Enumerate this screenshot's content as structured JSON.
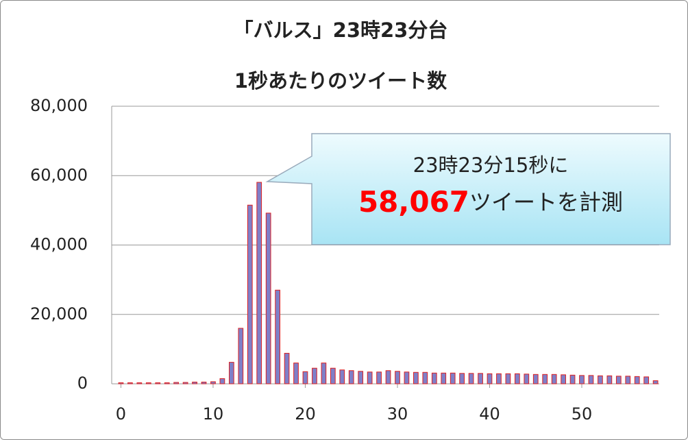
{
  "chart_data": {
    "type": "bar",
    "title": "「バルス」23時23分台",
    "subtitle": "1秒あたりのツイート数",
    "annotation": [
      "23時23分15秒に",
      "58,067",
      "ツイートを計測"
    ],
    "x": [
      0,
      1,
      2,
      3,
      4,
      5,
      6,
      7,
      8,
      9,
      10,
      11,
      12,
      13,
      14,
      15,
      16,
      17,
      18,
      19,
      20,
      21,
      22,
      23,
      24,
      25,
      26,
      27,
      28,
      29,
      30,
      31,
      32,
      33,
      34,
      35,
      36,
      37,
      38,
      39,
      40,
      41,
      42,
      43,
      44,
      45,
      46,
      47,
      48,
      49,
      50,
      51,
      52,
      53,
      54,
      55,
      56,
      57,
      58
    ],
    "values": [
      300,
      300,
      300,
      300,
      300,
      300,
      400,
      400,
      500,
      500,
      600,
      1500,
      6200,
      16000,
      51500,
      58067,
      49200,
      27000,
      8800,
      6000,
      3500,
      4500,
      6000,
      4500,
      4000,
      3800,
      3600,
      3400,
      3400,
      3800,
      3600,
      3400,
      3300,
      3300,
      3100,
      3100,
      3100,
      3000,
      3000,
      3000,
      2900,
      2900,
      2900,
      2900,
      2800,
      2700,
      2700,
      2700,
      2600,
      2500,
      2400,
      2400,
      2300,
      2300,
      2200,
      2200,
      2100,
      2000,
      900
    ],
    "color": "#7f7fc8",
    "edge_color": "#e02020",
    "xlim": [
      -1,
      58.4
    ],
    "xticks": [
      0,
      10,
      20,
      30,
      40,
      50
    ],
    "ylim": [
      0,
      80000
    ],
    "yticks": [
      0,
      {
        "value": 20000,
        "label": "20,000"
      },
      {
        "value": 40000,
        "label": "40,000"
      },
      {
        "value": 60000,
        "label": "60,000"
      },
      {
        "value": 80000,
        "label": "80,000"
      }
    ],
    "grid": true
  }
}
